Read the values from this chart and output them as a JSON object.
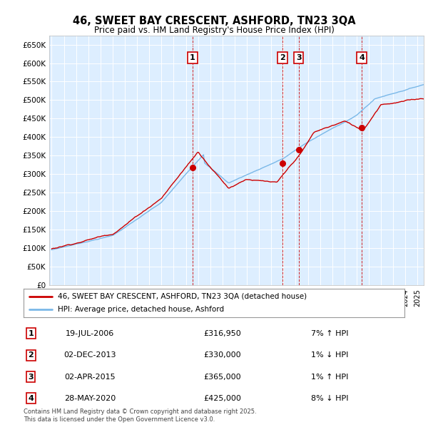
{
  "title": "46, SWEET BAY CRESCENT, ASHFORD, TN23 3QA",
  "subtitle": "Price paid vs. HM Land Registry's House Price Index (HPI)",
  "ytick_values": [
    0,
    50000,
    100000,
    150000,
    200000,
    250000,
    300000,
    350000,
    400000,
    450000,
    500000,
    550000,
    600000,
    650000
  ],
  "ylim": [
    0,
    675000
  ],
  "xlim_start": 1994.8,
  "xlim_end": 2025.5,
  "plot_bg_color": "#ddeeff",
  "hpi_line_color": "#7ab8e8",
  "price_line_color": "#cc0000",
  "marker_color": "#cc0000",
  "vline_color": "#cc0000",
  "sale_points": [
    {
      "date_x": 2006.55,
      "price": 316950,
      "label": "1"
    },
    {
      "date_x": 2013.92,
      "price": 330000,
      "label": "2"
    },
    {
      "date_x": 2015.25,
      "price": 365000,
      "label": "3"
    },
    {
      "date_x": 2020.42,
      "price": 425000,
      "label": "4"
    }
  ],
  "legend_entries": [
    {
      "label": "46, SWEET BAY CRESCENT, ASHFORD, TN23 3QA (detached house)",
      "color": "#cc0000"
    },
    {
      "label": "HPI: Average price, detached house, Ashford",
      "color": "#7ab8e8"
    }
  ],
  "table_rows": [
    {
      "num": "1",
      "date": "19-JUL-2006",
      "price": "£316,950",
      "pct": "7% ↑ HPI"
    },
    {
      "num": "2",
      "date": "02-DEC-2013",
      "price": "£330,000",
      "pct": "1% ↓ HPI"
    },
    {
      "num": "3",
      "date": "02-APR-2015",
      "price": "£365,000",
      "pct": "1% ↑ HPI"
    },
    {
      "num": "4",
      "date": "28-MAY-2020",
      "price": "£425,000",
      "pct": "8% ↓ HPI"
    }
  ],
  "footnote": "Contains HM Land Registry data © Crown copyright and database right 2025.\nThis data is licensed under the Open Government Licence v3.0."
}
